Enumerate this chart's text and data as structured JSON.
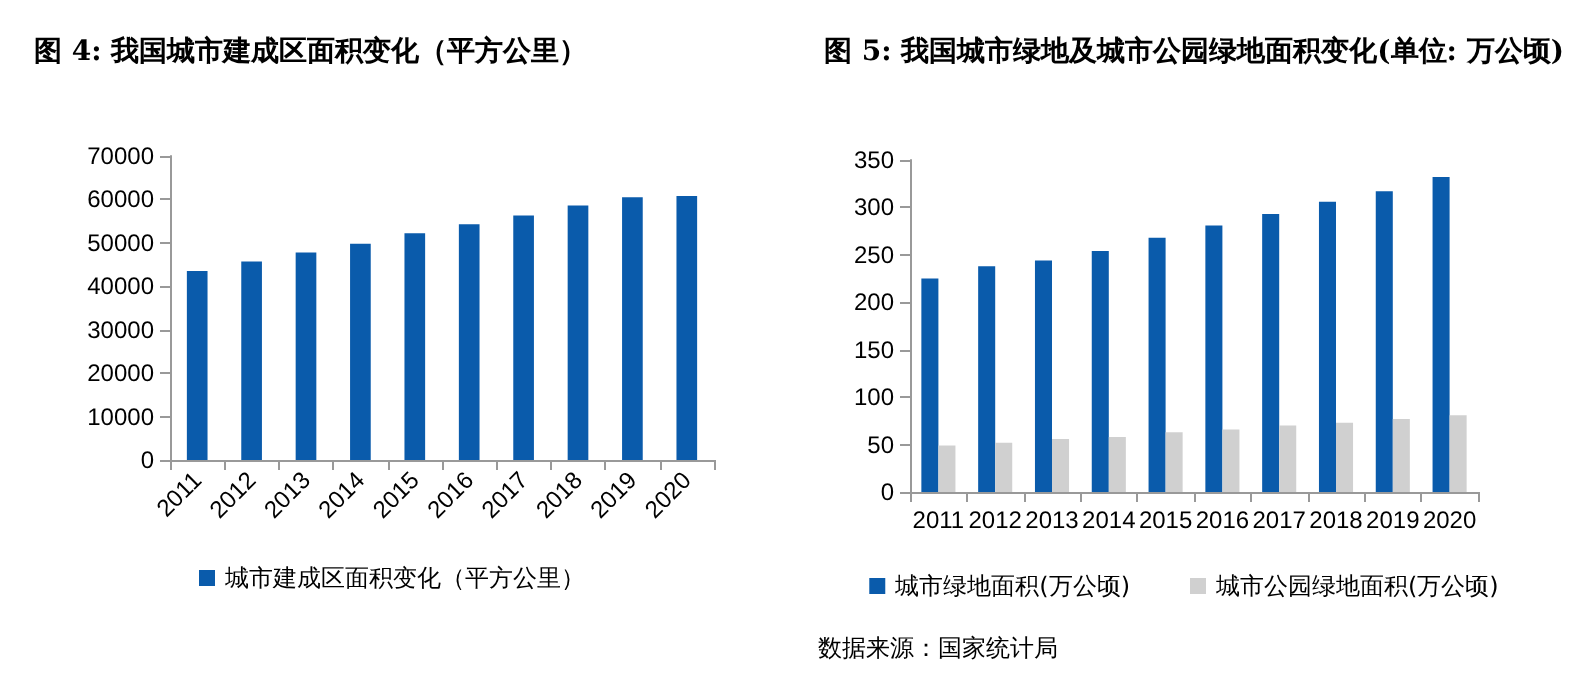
{
  "chart_data": [
    {
      "type": "bar",
      "title": "图 4: 我国城市建成区面积变化（平方公里）",
      "categories": [
        "2011",
        "2012",
        "2013",
        "2014",
        "2015",
        "2016",
        "2017",
        "2018",
        "2019",
        "2020"
      ],
      "series": [
        {
          "name": "城市建成区面积变化（平方公里）",
          "color": "#0a5bab",
          "values": [
            43500,
            45700,
            47800,
            49800,
            52200,
            54300,
            56300,
            58600,
            60500,
            60800
          ]
        }
      ],
      "ylim": [
        0,
        70000
      ],
      "yticks": [
        0,
        10000,
        20000,
        30000,
        40000,
        50000,
        60000,
        70000
      ],
      "grid": false,
      "legend": "bottom"
    },
    {
      "type": "bar",
      "title": "图 5: 我国城市绿地及城市公园绿地面积变化(单位: 万公顷)",
      "categories": [
        "2011",
        "2012",
        "2013",
        "2014",
        "2015",
        "2016",
        "2017",
        "2018",
        "2019",
        "2020"
      ],
      "series": [
        {
          "name": "城市绿地面积(万公顷)",
          "color": "#0a5bab",
          "values": [
            225,
            238,
            244,
            254,
            268,
            281,
            293,
            306,
            317,
            332
          ]
        },
        {
          "name": "城市公园绿地面积(万公顷)",
          "color": "#d0d0d0",
          "values": [
            49,
            52,
            56,
            58,
            63,
            66,
            70,
            73,
            77,
            81
          ]
        }
      ],
      "ylim": [
        0,
        350
      ],
      "yticks": [
        0,
        50,
        100,
        150,
        200,
        250,
        300,
        350
      ],
      "grid": false,
      "legend": "bottom",
      "annotations": [
        "数据来源：国家统计局"
      ]
    }
  ]
}
